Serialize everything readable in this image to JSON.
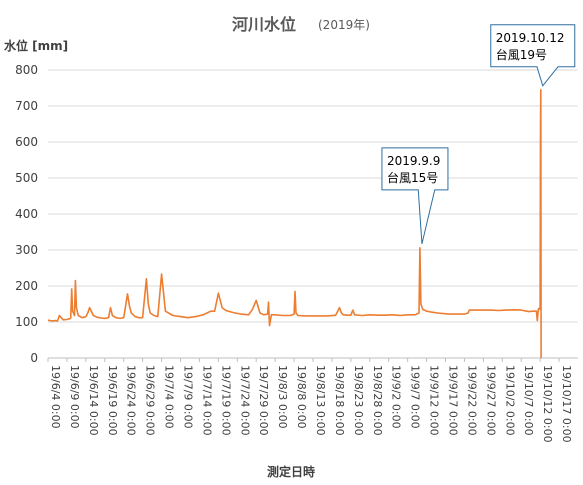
{
  "chart_data": {
    "type": "line",
    "title": "河川水位",
    "subtitle": "(2019年)",
    "ylabel": "水位 [mm]",
    "xlabel": "測定日時",
    "ylim": [
      0,
      800
    ],
    "yticks": [
      0,
      100,
      200,
      300,
      400,
      500,
      600,
      700,
      800
    ],
    "xlim": [
      "2019-06-04",
      "2019-10-22"
    ],
    "xticks": [
      "2019-06-04",
      "2019-06-09",
      "2019-06-14",
      "2019-06-19",
      "2019-06-24",
      "2019-06-29",
      "2019-07-04",
      "2019-07-09",
      "2019-07-14",
      "2019-07-19",
      "2019-07-24",
      "2019-07-29",
      "2019-08-03",
      "2019-08-08",
      "2019-08-13",
      "2019-08-18",
      "2019-08-23",
      "2019-08-28",
      "2019-09-02",
      "2019-09-07",
      "2019-09-12",
      "2019-09-17",
      "2019-09-22",
      "2019-09-27",
      "2019-10-02",
      "2019-10-07",
      "2019-10-12",
      "2019-10-17"
    ],
    "xtick_labels": [
      "19/6/4 0:00",
      "19/6/9 0:00",
      "19/6/14 0:00",
      "19/6/19 0:00",
      "19/6/24 0:00",
      "19/6/29 0:00",
      "19/7/4 0:00",
      "19/7/9 0:00",
      "19/7/14 0:00",
      "19/7/19 0:00",
      "19/7/24 0:00",
      "19/7/29 0:00",
      "19/8/3 0:00",
      "19/8/8 0:00",
      "19/8/13 0:00",
      "19/8/18 0:00",
      "19/8/23 0:00",
      "19/8/28 0:00",
      "19/9/2 0:00",
      "19/9/7 0:00",
      "19/9/12 0:00",
      "19/9/17 0:00",
      "19/9/22 0:00",
      "19/9/27 0:00",
      "19/10/2 0:00",
      "19/10/7 0:00",
      "19/10/12 0:00",
      "19/10/17 0:00"
    ],
    "grid": "horizontal",
    "legend": "none",
    "series": [
      {
        "color": "#ed7d31",
        "x": [
          "2019-06-04",
          "2019-06-05",
          "2019-06-06",
          "2019-06-06T12:00",
          "2019-06-07",
          "2019-06-08",
          "2019-06-09",
          "2019-06-10",
          "2019-06-10T06:00",
          "2019-06-10T12:00",
          "2019-06-11",
          "2019-06-11T06:00",
          "2019-06-11T12:00",
          "2019-06-12",
          "2019-06-13",
          "2019-06-14",
          "2019-06-14T12:00",
          "2019-06-15",
          "2019-06-16",
          "2019-06-17",
          "2019-06-18",
          "2019-06-19",
          "2019-06-20",
          "2019-06-20T12:00",
          "2019-06-21",
          "2019-06-22",
          "2019-06-23",
          "2019-06-24",
          "2019-06-25",
          "2019-06-25T12:00",
          "2019-06-26",
          "2019-06-27",
          "2019-06-28",
          "2019-06-29",
          "2019-06-30",
          "2019-06-30T12:00",
          "2019-07-01",
          "2019-07-02",
          "2019-07-03",
          "2019-07-04",
          "2019-07-05",
          "2019-07-07",
          "2019-07-09",
          "2019-07-11",
          "2019-07-13",
          "2019-07-15",
          "2019-07-16",
          "2019-07-17",
          "2019-07-18",
          "2019-07-19",
          "2019-07-20",
          "2019-07-21",
          "2019-07-23",
          "2019-07-25",
          "2019-07-27",
          "2019-07-28",
          "2019-07-29",
          "2019-07-30",
          "2019-07-31",
          "2019-08-01",
          "2019-08-01T06:00",
          "2019-08-01T12:00",
          "2019-08-02",
          "2019-08-03",
          "2019-08-05",
          "2019-08-07",
          "2019-08-08",
          "2019-08-08T06:00",
          "2019-08-08T12:00",
          "2019-08-09",
          "2019-08-11",
          "2019-08-13",
          "2019-08-15",
          "2019-08-17",
          "2019-08-19",
          "2019-08-20",
          "2019-08-20T12:00",
          "2019-08-21",
          "2019-08-22",
          "2019-08-23",
          "2019-08-23T12:00",
          "2019-08-24",
          "2019-08-26",
          "2019-08-28",
          "2019-08-30",
          "2019-09-01",
          "2019-09-03",
          "2019-09-05",
          "2019-09-07",
          "2019-09-09",
          "2019-09-10",
          "2019-09-10T06:00",
          "2019-09-10T12:00",
          "2019-09-11",
          "2019-09-12",
          "2019-09-13",
          "2019-09-15",
          "2019-09-16",
          "2019-09-18",
          "2019-09-20",
          "2019-09-22",
          "2019-09-23",
          "2019-09-23T06:00",
          "2019-09-25",
          "2019-09-27",
          "2019-09-29",
          "2019-10-01",
          "2019-10-03",
          "2019-10-05",
          "2019-10-07",
          "2019-10-08",
          "2019-10-09",
          "2019-10-10",
          "2019-10-11",
          "2019-10-11T06:00",
          "2019-10-11T12:00",
          "2019-10-11T18:00",
          "2019-10-12",
          "2019-10-12T02:00",
          "2019-10-12T04:00",
          "2019-10-12T06:00"
        ],
        "y": [
          105,
          103,
          104,
          103,
          118,
          106,
          107,
          110,
          192,
          130,
          118,
          215,
          140,
          118,
          112,
          115,
          125,
          140,
          118,
          113,
          111,
          110,
          112,
          140,
          118,
          112,
          110,
          112,
          178,
          145,
          125,
          115,
          112,
          112,
          220,
          150,
          125,
          118,
          115,
          233,
          130,
          118,
          115,
          112,
          115,
          120,
          125,
          130,
          130,
          180,
          140,
          132,
          126,
          122,
          120,
          135,
          160,
          125,
          120,
          122,
          155,
          90,
          120,
          120,
          118,
          118,
          122,
          185,
          125,
          118,
          117,
          117,
          117,
          117,
          119,
          140,
          125,
          120,
          119,
          119,
          133,
          120,
          118,
          120,
          119,
          119,
          120,
          118,
          120,
          120,
          125,
          306,
          150,
          135,
          130,
          128,
          125,
          124,
          122,
          122,
          122,
          125,
          133,
          133,
          133,
          133,
          132,
          133,
          134,
          133,
          131,
          129,
          130,
          130,
          104,
          135,
          138,
          135,
          640,
          745,
          0
        ]
      }
    ],
    "annotations": [
      {
        "line1": "2019.9.9",
        "line2": "台風15号",
        "x": "2019-09-10T06:00",
        "y": 306
      },
      {
        "line1": "2019.10.12",
        "line2": "台風19号",
        "x": "2019-10-12T04:00",
        "y": 745
      }
    ]
  }
}
